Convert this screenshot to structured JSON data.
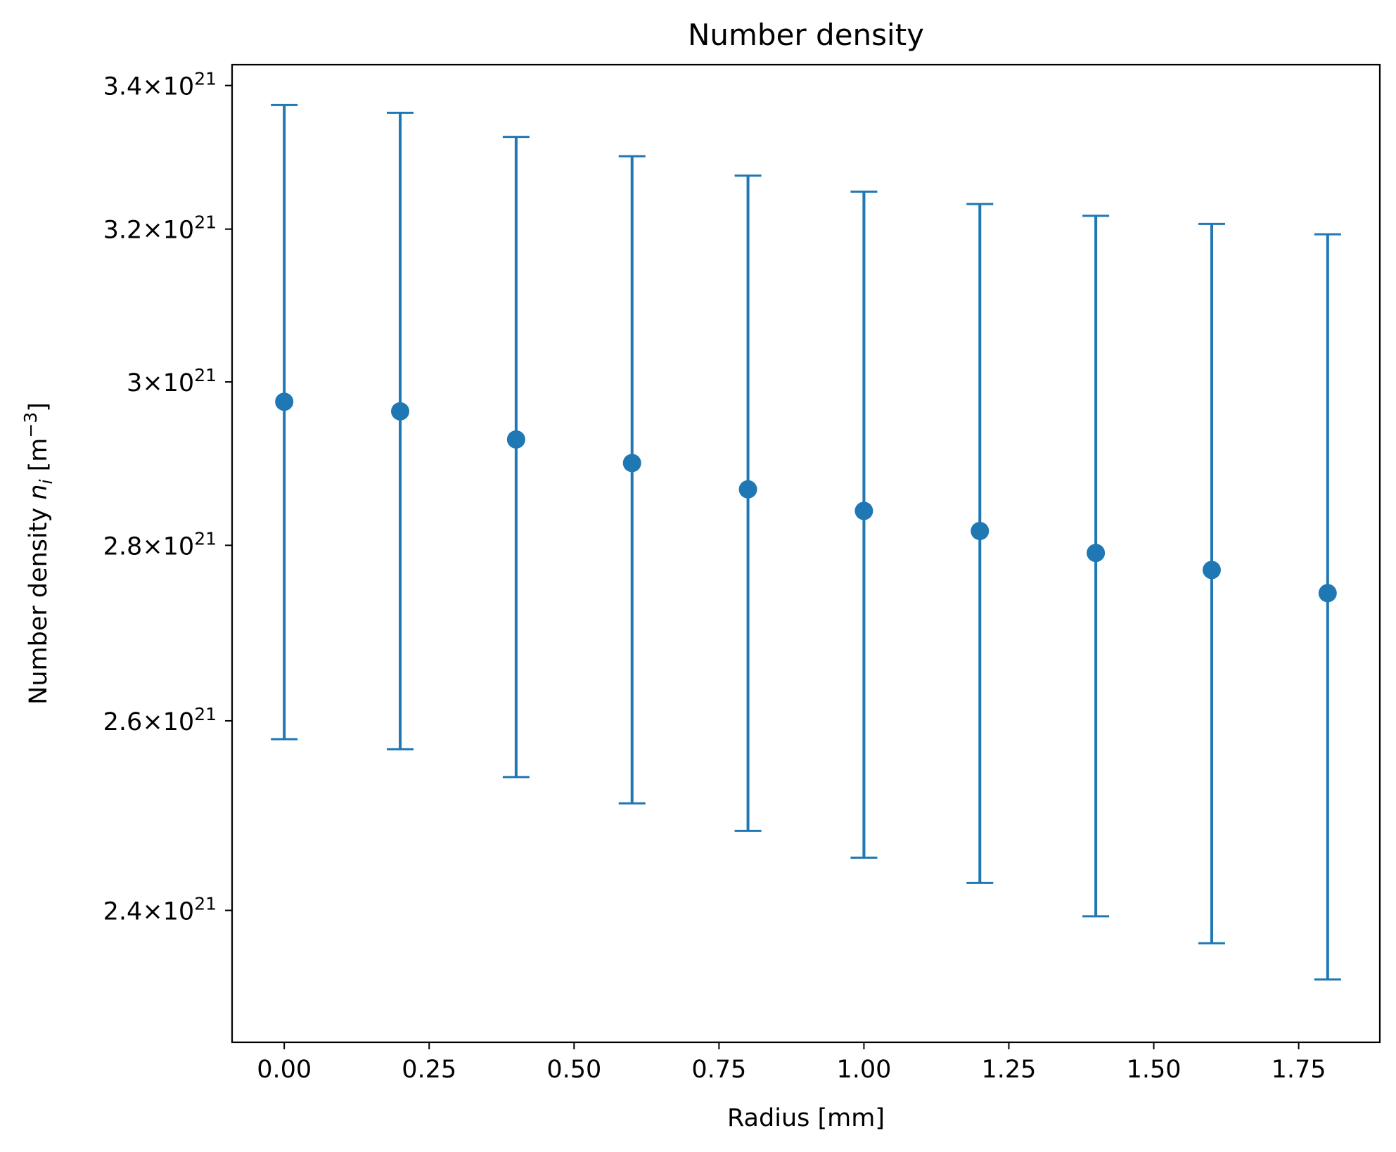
{
  "chart_data": {
    "type": "scatter",
    "title": "Number density",
    "xlabel": "Radius [mm]",
    "ylabel": "Number density n_i [m^-3]",
    "ylabel_parts": {
      "prefix": "Number density ",
      "var": "n",
      "sub": "i",
      "unit_open": " [m",
      "unit_exp": "−3",
      "unit_close": "]"
    },
    "y_scale": "log",
    "xlim": [
      -0.09,
      1.89
    ],
    "ylim": [
      2.27e+21,
      3.43e+21
    ],
    "x_ticks": [
      {
        "value": 0.0,
        "label": "0.00"
      },
      {
        "value": 0.25,
        "label": "0.25"
      },
      {
        "value": 0.5,
        "label": "0.50"
      },
      {
        "value": 0.75,
        "label": "0.75"
      },
      {
        "value": 1.0,
        "label": "1.00"
      },
      {
        "value": 1.25,
        "label": "1.25"
      },
      {
        "value": 1.5,
        "label": "1.50"
      },
      {
        "value": 1.75,
        "label": "1.75"
      }
    ],
    "y_ticks": [
      {
        "value": 2.4e+21,
        "mantissa": "2.4",
        "exponent": "21"
      },
      {
        "value": 2.6e+21,
        "mantissa": "2.6",
        "exponent": "21"
      },
      {
        "value": 2.8e+21,
        "mantissa": "2.8",
        "exponent": "21"
      },
      {
        "value": 3e+21,
        "mantissa": "3",
        "exponent": "21"
      },
      {
        "value": 3.2e+21,
        "mantissa": "3.2",
        "exponent": "21"
      },
      {
        "value": 3.4e+21,
        "mantissa": "3.4",
        "exponent": "21"
      }
    ],
    "series": [
      {
        "color": "#1f77b4",
        "marker": "circle",
        "error_bars": true,
        "x": [
          0.0,
          0.2,
          0.4,
          0.6,
          0.8,
          1.0,
          1.2,
          1.4,
          1.6,
          1.8
        ],
        "y": [
          2.975e+21,
          2.963e+21,
          2.928e+21,
          2.899e+21,
          2.867e+21,
          2.841e+21,
          2.817e+21,
          2.791e+21,
          2.771e+21,
          2.744e+21
        ],
        "y_lower": [
          2.58e+21,
          2.569e+21,
          2.539e+21,
          2.511e+21,
          2.482e+21,
          2.454e+21,
          2.428e+21,
          2.394e+21,
          2.367e+21,
          2.331e+21
        ],
        "y_upper": [
          3.372e+21,
          3.361e+21,
          3.327e+21,
          3.3e+21,
          3.273e+21,
          3.251e+21,
          3.234e+21,
          3.218e+21,
          3.207e+21,
          3.193e+21
        ]
      }
    ],
    "grid": false,
    "legend": "none"
  }
}
